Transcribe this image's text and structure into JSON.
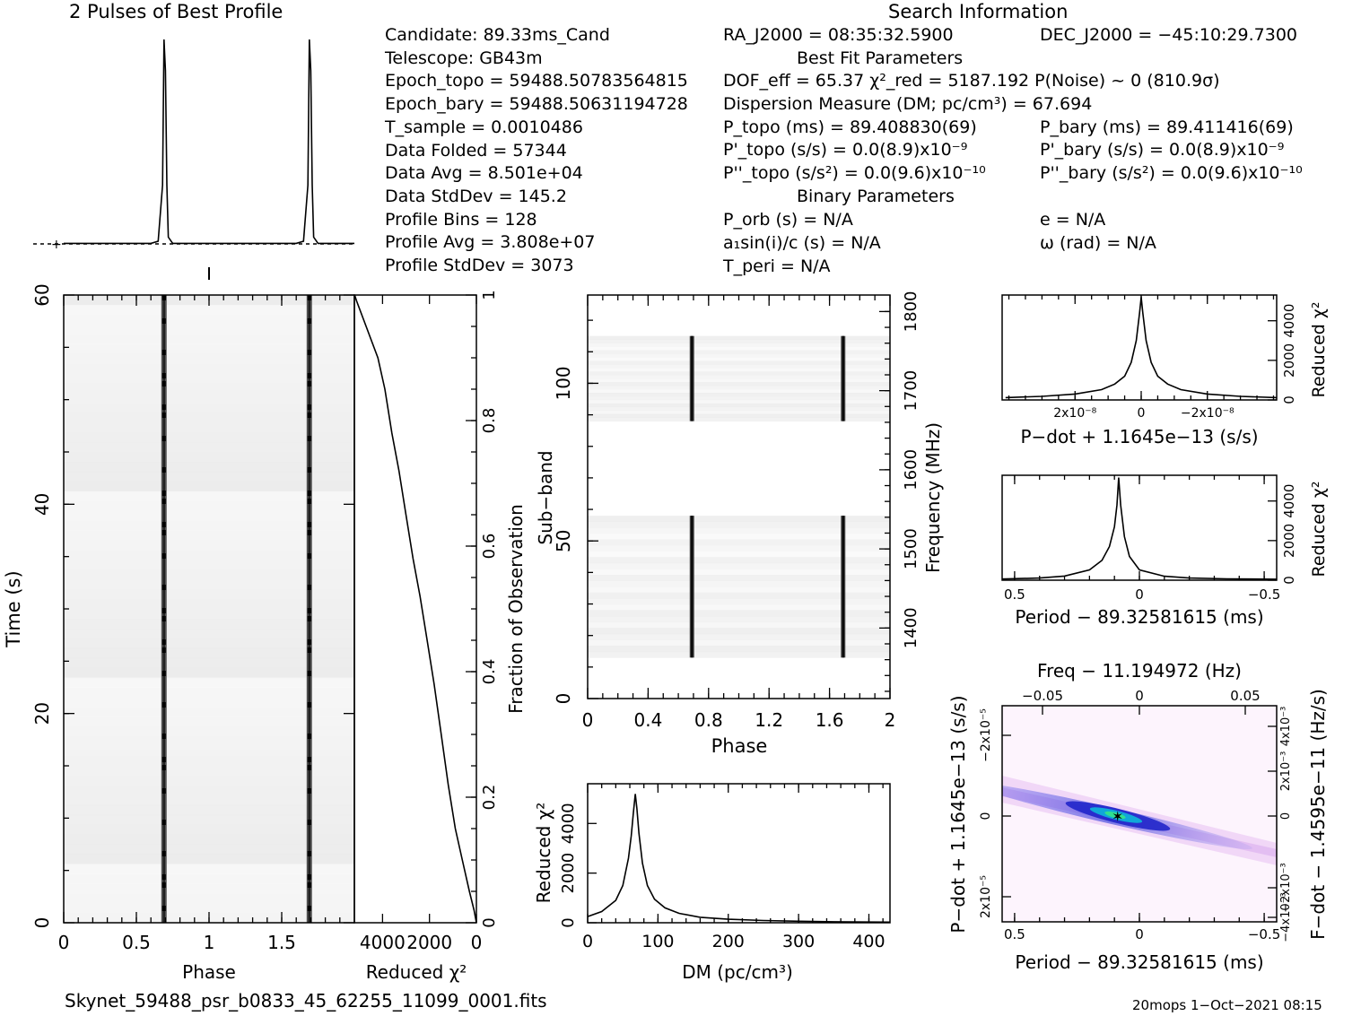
{
  "header": {
    "profile_title": "2 Pulses of Best Profile",
    "search_title": "Search Information",
    "best_fit_title": "Best Fit Parameters",
    "binary_title": "Binary Parameters"
  },
  "info_left": [
    "Candidate:  89.33ms_Cand",
    "Telescope:  GB43m",
    "Epoch_topo = 59488.50783564815",
    "Epoch_bary = 59488.50631194728",
    "T_sample        =  0.0010486",
    "Data Folded     =  57344",
    "Data Avg        =  8.501e+04",
    "Data StdDev     =  145.2",
    "Profile Bins    =  128",
    "Profile Avg     =  3.808e+07",
    "Profile StdDev  =  3073"
  ],
  "info_mid": [
    "RA_J2000 = 08:35:32.5900",
    "DOF_eff = 65.37  χ²_red = 5187.192  P(Noise) ~ 0   (810.9σ)",
    "Dispersion Measure (DM; pc/cm³) = 67.694",
    "P_topo (ms) =  89.408830(69)",
    "P'_topo (s/s) = 0.0(8.9)x10⁻⁹",
    "P''_topo (s/s²) = 0.0(9.6)x10⁻¹⁰",
    "P_orb (s) = N/A",
    "a₁sin(i)/c (s) = N/A",
    "T_peri = N/A"
  ],
  "info_right": [
    "DEC_J2000 = −45:10:29.7300",
    "P_bary (ms) =  89.411416(69)",
    "P'_bary (s/s) = 0.0(8.9)x10⁻⁹",
    "P''_bary (s/s²) = 0.0(9.6)x10⁻¹⁰",
    "e = N/A",
    "ω (rad) = N/A"
  ],
  "footer": {
    "filename": "Skynet_59488_psr_b0833_45_62255_11099_0001.fits",
    "stamp": "20mops  1−Oct−2021 08:15"
  },
  "chart_data": [
    {
      "id": "profile",
      "type": "line",
      "x": [
        0,
        0.05,
        0.1,
        0.2,
        0.3,
        0.4,
        0.5,
        0.6,
        0.65,
        0.68,
        0.69,
        0.7,
        0.71,
        0.72,
        0.75,
        0.8,
        0.9,
        1.0,
        1.1,
        1.2,
        1.3,
        1.4,
        1.5,
        1.6,
        1.65,
        1.68,
        1.69,
        1.7,
        1.71,
        1.72,
        1.75,
        1.8,
        1.9,
        2.0
      ],
      "y": [
        0.02,
        0.02,
        0.02,
        0.02,
        0.02,
        0.02,
        0.02,
        0.02,
        0.03,
        0.3,
        1.0,
        0.85,
        0.3,
        0.05,
        0.02,
        0.02,
        0.02,
        0.02,
        0.02,
        0.02,
        0.02,
        0.02,
        0.02,
        0.02,
        0.03,
        0.3,
        1.0,
        0.85,
        0.3,
        0.05,
        0.02,
        0.02,
        0.02,
        0.02
      ]
    },
    {
      "id": "time_phase",
      "type": "heatmap",
      "xlabel": "Phase",
      "ylabel": "Time (s)",
      "xticks": [
        "0",
        "0.5",
        "1",
        "1.5"
      ],
      "yticks": [
        "0",
        "20",
        "40",
        "60"
      ],
      "xlim": [
        0,
        2
      ],
      "ylim": [
        0,
        60
      ],
      "pulse_phases": [
        0.69,
        1.69
      ]
    },
    {
      "id": "time_chi",
      "type": "line",
      "xlabel": "Reduced χ²",
      "ylabel": "Fraction of Observation",
      "xticks": [
        "4000",
        "2000",
        "0"
      ],
      "yticks": [
        "0",
        "0.2",
        "0.4",
        "0.6",
        "0.8",
        "1"
      ],
      "x": [
        0,
        100,
        300,
        600,
        900,
        1200,
        1500,
        1800,
        2100,
        2400,
        2700,
        3000,
        3300,
        3600,
        3900,
        4200,
        4700,
        5100,
        5187
      ],
      "y": [
        0,
        0.02,
        0.05,
        0.1,
        0.15,
        0.22,
        0.3,
        0.38,
        0.45,
        0.52,
        0.58,
        0.65,
        0.72,
        0.78,
        0.85,
        0.9,
        0.95,
        0.99,
        1.0
      ]
    },
    {
      "id": "subband_phase",
      "type": "heatmap",
      "xlabel": "Phase",
      "ylabel": "Sub−band",
      "ylabel_right": "Frequency (MHz)",
      "xticks": [
        "0",
        "0.4",
        "0.8",
        "1.2",
        "1.6",
        "2"
      ],
      "yticks": [
        "0",
        "50",
        "100"
      ],
      "yticks_right": [
        "1400",
        "1500",
        "1600",
        "1700",
        "1800"
      ],
      "xlim": [
        0,
        2
      ],
      "ylim": [
        0,
        128
      ],
      "pulse_phases": [
        0.69,
        1.69
      ],
      "active_bands": [
        [
          13,
          58
        ],
        [
          88,
          115
        ]
      ]
    },
    {
      "id": "dm_curve",
      "type": "line",
      "xlabel": "DM (pc/cm³)",
      "ylabel": "Reduced χ²",
      "xticks": [
        "0",
        "100",
        "200",
        "300",
        "400"
      ],
      "yticks": [
        "0",
        "2000",
        "4000"
      ],
      "xlim": [
        0,
        430
      ],
      "ylim": [
        0,
        5600
      ],
      "x": [
        0,
        20,
        40,
        50,
        58,
        62,
        65,
        67.7,
        70,
        73,
        78,
        85,
        95,
        110,
        130,
        160,
        200,
        250,
        300,
        350,
        400,
        430
      ],
      "y": [
        250,
        450,
        900,
        1500,
        2600,
        3500,
        4400,
        5187,
        4600,
        3600,
        2400,
        1500,
        950,
        600,
        380,
        220,
        140,
        90,
        60,
        40,
        30,
        25
      ]
    },
    {
      "id": "pdot_curve",
      "type": "line",
      "xlabel": "P−dot + 1.1645e−13 (s/s)",
      "ylabel": "Reduced χ²",
      "xticks": [
        "2x10⁻⁸",
        "0",
        "−2x10⁻⁸"
      ],
      "yticks": [
        "0",
        "2000",
        "4000"
      ],
      "x": [
        4.1,
        3,
        2,
        1.2,
        0.8,
        0.5,
        0.3,
        0.15,
        0.05,
        0,
        -0.05,
        -0.15,
        -0.3,
        -0.5,
        -0.8,
        -1.2,
        -2,
        -3,
        -4.1
      ],
      "y": [
        120,
        180,
        300,
        520,
        800,
        1200,
        1900,
        3000,
        4400,
        5187,
        4400,
        3000,
        1900,
        1200,
        800,
        520,
        300,
        180,
        120
      ]
    },
    {
      "id": "period_curve",
      "type": "line",
      "xlabel": "Period − 89.32581615 (ms)",
      "ylabel": "Reduced χ²",
      "xticks": [
        "0.5",
        "0",
        "−0.5"
      ],
      "yticks": [
        "0",
        "2000",
        "4000"
      ],
      "x": [
        0.55,
        0.4,
        0.3,
        0.2,
        0.15,
        0.12,
        0.1,
        0.09,
        0.083,
        0.075,
        0.06,
        0.04,
        0,
        -0.1,
        -0.2,
        -0.35,
        -0.55
      ],
      "y": [
        60,
        110,
        210,
        520,
        1000,
        1700,
        2700,
        3800,
        5187,
        3800,
        2200,
        1200,
        520,
        200,
        110,
        70,
        50
      ]
    },
    {
      "id": "ppdot_plane",
      "type": "heatmap",
      "xlabel": "Period − 89.32581615 (ms)",
      "ylabel": "P−dot + 1.1645e−13 (s/s)",
      "xlabel_top": "Freq − 11.194972 (Hz)",
      "ylabel_right": "F−dot − 1.4595e−11 (Hz/s)",
      "xticks": [
        "0.5",
        "0",
        "−0.5"
      ],
      "xticks_top": [
        "−0.05",
        "0",
        "0.05"
      ],
      "yticks": [
        "2x10⁻⁵",
        "0",
        "−2x10⁻⁵"
      ],
      "yticks_right": [
        "−4x10⁻³",
        "−2x10⁻³",
        "0",
        "2x10⁻³",
        "4x10⁻³"
      ],
      "best": [
        0.083,
        0
      ]
    }
  ]
}
